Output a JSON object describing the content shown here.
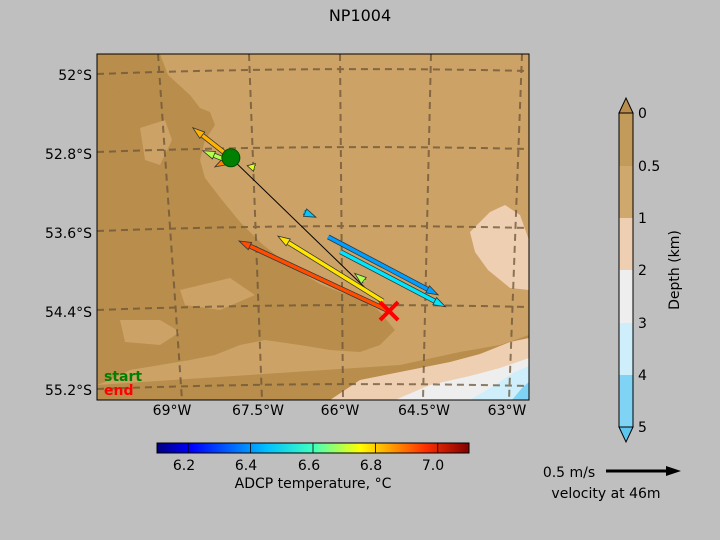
{
  "title": "NP1004",
  "map": {
    "lat_ticks": [
      "52°S",
      "52.8°S",
      "53.6°S",
      "54.4°S",
      "55.2°S"
    ],
    "lon_ticks": [
      "69°W",
      "67.5°W",
      "66°W",
      "64.5°W",
      "63°W"
    ],
    "legend": {
      "start_label": "start",
      "end_label": "end",
      "start_color": "#008000",
      "end_color": "#ff0000"
    },
    "land_colors": {
      "light": "#cca266",
      "dark": "#b98d4b"
    }
  },
  "temperature_colorbar": {
    "label": "ADCP temperature, °C",
    "ticks": [
      "6.2",
      "6.4",
      "6.6",
      "6.8",
      "7.0"
    ],
    "tick_values": [
      6.2,
      6.4,
      6.6,
      6.8,
      7.0
    ],
    "range": [
      6.1,
      7.1
    ]
  },
  "depth_colorbar": {
    "label": "Depth (km)",
    "ticks": [
      "0",
      "0.5",
      "1",
      "2",
      "3",
      "4",
      "5"
    ],
    "colors": [
      "#c29a5a",
      "#cfa86e",
      "#eecfb2",
      "#eeeeee",
      "#cdeefa",
      "#7fd3f4"
    ]
  },
  "velocity_key": {
    "speed_label": "0.5 m/s",
    "depth_label": "velocity at 46m"
  },
  "track": {
    "start": {
      "lon": -67.7,
      "lat": -52.85
    },
    "end": {
      "lon": -65.1,
      "lat": -54.4
    }
  },
  "velocity_vectors": [
    {
      "lon": -65.1,
      "lat": -54.4,
      "temp": 6.9,
      "speed": 0.55
    },
    {
      "lon": -65.2,
      "lat": -54.3,
      "temp": 6.75,
      "speed": 0.42
    },
    {
      "lon": -65.5,
      "lat": -54.1,
      "temp": 6.65,
      "speed": 0.05
    },
    {
      "lon": -65.9,
      "lat": -53.8,
      "temp": 6.45,
      "speed": 0.5
    },
    {
      "lon": -66.1,
      "lat": -53.65,
      "temp": 6.38,
      "speed": 0.55
    },
    {
      "lon": -66.5,
      "lat": -53.4,
      "temp": 6.42,
      "speed": 0.05
    },
    {
      "lon": -67.3,
      "lat": -52.95,
      "temp": 6.7,
      "speed": 0.05
    },
    {
      "lon": -67.7,
      "lat": -52.85,
      "temp": 6.8,
      "speed": 0.2
    },
    {
      "lon": -67.6,
      "lat": -52.82,
      "temp": 6.85,
      "speed": 0.15
    },
    {
      "lon": -67.75,
      "lat": -52.88,
      "temp": 6.65,
      "speed": 0.25
    }
  ]
}
